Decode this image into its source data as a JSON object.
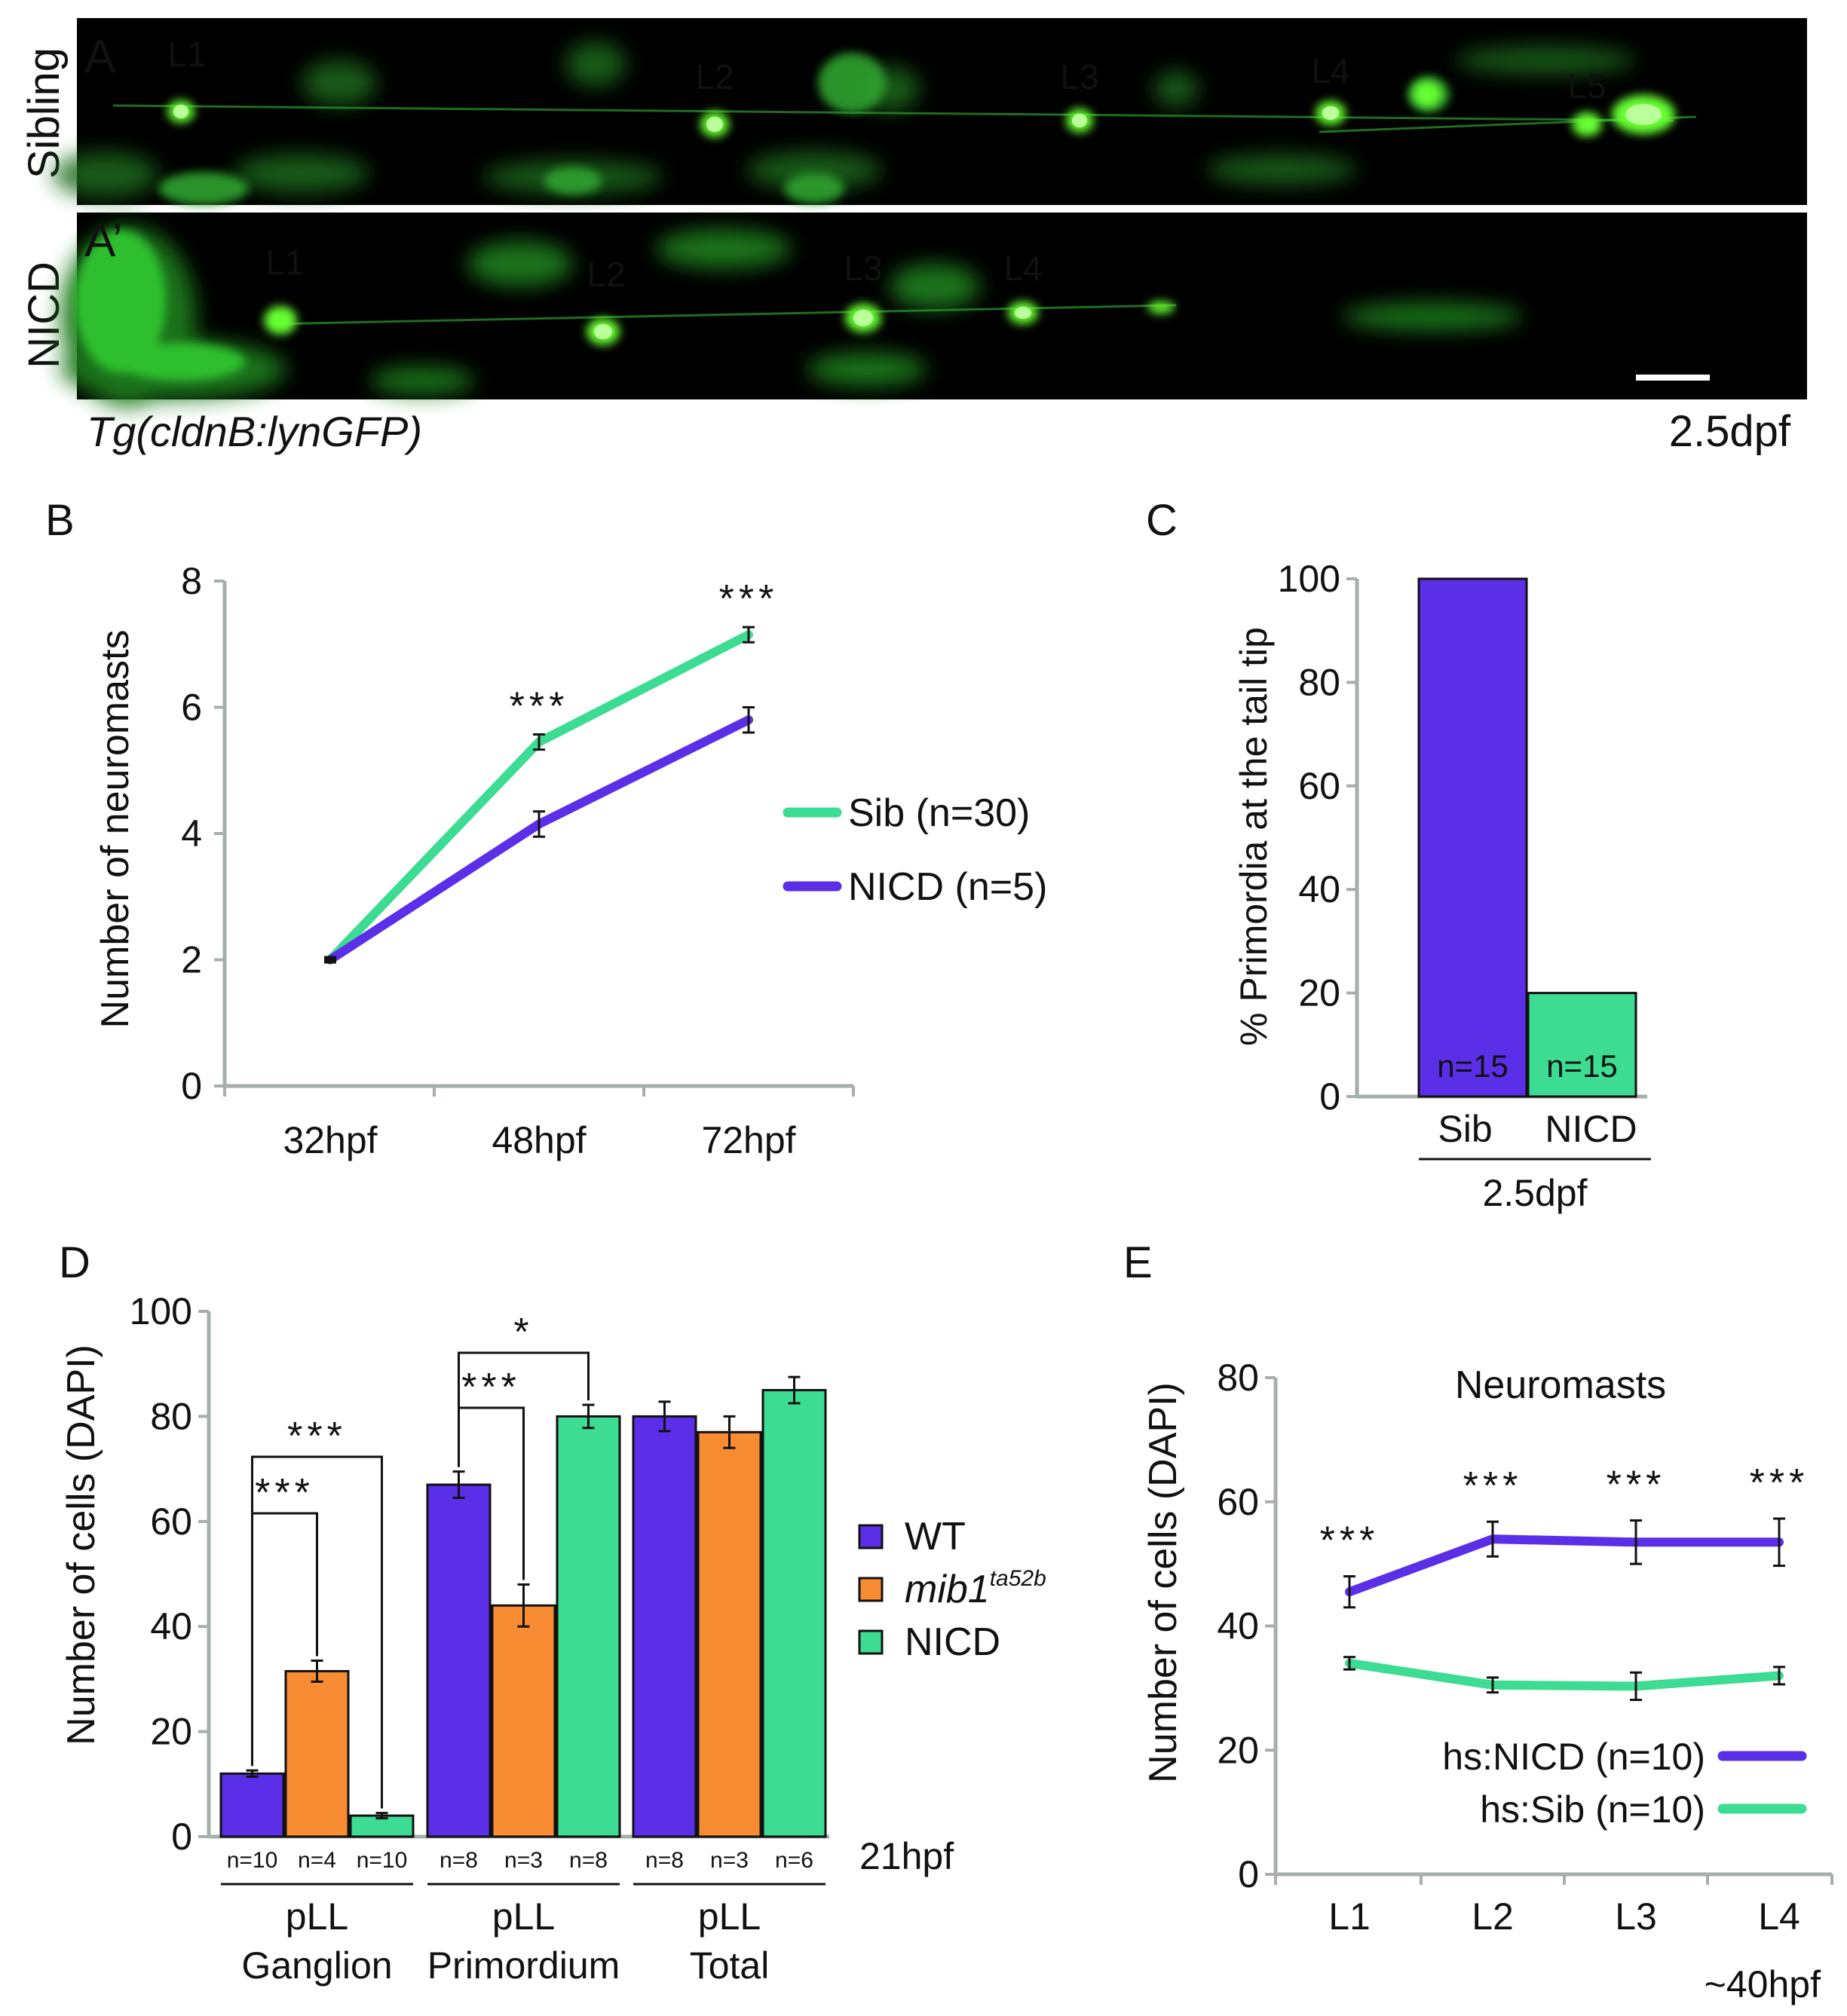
{
  "panelA": {
    "letter": "A",
    "letter2": "A’",
    "row_labels": [
      "Sibling",
      "NICD"
    ],
    "sibling_labels": [
      "L1",
      "L2",
      "L3",
      "L4",
      "L5"
    ],
    "nicd_labels": [
      "L1",
      "L2",
      "L3",
      "L4"
    ],
    "transgene": "Tg(cldnB:lynGFP)",
    "stage": "2.5dpf",
    "colors": {
      "background": "#000000",
      "gfp": "#33ff33",
      "transgene_text": "#3ecb1c"
    }
  },
  "chart_data": [
    {
      "id": "B",
      "type": "line",
      "letter": "B",
      "ylabel": "Number of neuromasts",
      "categories": [
        "32hpf",
        "48hpf",
        "72hpf"
      ],
      "ylim": [
        0,
        8
      ],
      "yticks": [
        "0",
        "2",
        "4",
        "6",
        "8"
      ],
      "series": [
        {
          "name": "Sib (n=30)",
          "color": "#3ddc93",
          "values": [
            2,
            5.45,
            7.15
          ],
          "errors": [
            0.05,
            0.12,
            0.12
          ]
        },
        {
          "name": "NICD (n=5)",
          "color": "#5b2ee8",
          "values": [
            2,
            4.15,
            5.8
          ],
          "errors": [
            0.05,
            0.2,
            0.2
          ]
        }
      ],
      "significance": [
        "***",
        "***"
      ],
      "legend": "right"
    },
    {
      "id": "C",
      "type": "bar",
      "letter": "C",
      "ylabel": "% Primordia at the tail tip",
      "categories": [
        "Sib",
        "NICD"
      ],
      "values": [
        100,
        20
      ],
      "n_labels": [
        "n=15",
        "n=15"
      ],
      "colors": [
        "#5b2ee8",
        "#3ddc93"
      ],
      "ylim": [
        0,
        100
      ],
      "yticks": [
        "0",
        "20",
        "40",
        "60",
        "80",
        "100"
      ],
      "xgroup_label": "2.5dpf"
    },
    {
      "id": "D",
      "type": "bar",
      "letter": "D",
      "ylabel": "Number of cells (DAPI)",
      "ylim": [
        0,
        100
      ],
      "yticks": [
        "0",
        "20",
        "40",
        "60",
        "80",
        "100"
      ],
      "groups": [
        {
          "line1": "pLL",
          "line2": "Ganglion"
        },
        {
          "line1": "pLL",
          "line2": "Primordium"
        },
        {
          "line1": "pLL",
          "line2": "Total"
        }
      ],
      "series": [
        {
          "name": "WT",
          "name_sup": "",
          "color": "#5b2ee8",
          "values": [
            12,
            67,
            80
          ],
          "errors": [
            0.6,
            2.5,
            2.8
          ],
          "n": [
            "n=10",
            "n=8",
            "n=8"
          ]
        },
        {
          "name": "mib1",
          "name_sup": "ta52b",
          "color": "#f78c32",
          "values": [
            31.5,
            44,
            77
          ],
          "errors": [
            2,
            4,
            3
          ],
          "n": [
            "n=4",
            "n=3",
            "n=3"
          ]
        },
        {
          "name": "NICD",
          "name_sup": "",
          "color": "#3ddc93",
          "values": [
            4,
            80,
            85
          ],
          "errors": [
            0.5,
            2.2,
            2.5
          ],
          "n": [
            "n=10",
            "n=8",
            "n=6"
          ]
        }
      ],
      "brackets": [
        {
          "label": "***",
          "group": 0,
          "from": 0,
          "to": 1
        },
        {
          "label": "***",
          "group": 0,
          "from": 0,
          "to": 2
        },
        {
          "label": "***",
          "group": 1,
          "from": 0,
          "to": 1
        },
        {
          "label": "*",
          "group": 1,
          "from": 0,
          "to": 2
        }
      ],
      "stage": "21hpf",
      "legend": "right"
    },
    {
      "id": "E",
      "type": "line",
      "letter": "E",
      "title": "Neuromasts",
      "ylabel": "Number of cells (DAPI)",
      "categories": [
        "L1",
        "L2",
        "L3",
        "L4"
      ],
      "ylim": [
        0,
        80
      ],
      "yticks": [
        "0",
        "20",
        "40",
        "60",
        "80"
      ],
      "series": [
        {
          "name": "hs:NICD (n=10)",
          "color": "#5b2ee8",
          "values": [
            45.5,
            54,
            53.5,
            53.5
          ],
          "errors": [
            2.5,
            2.8,
            3.5,
            3.8
          ]
        },
        {
          "name": "hs:Sib (n=10)",
          "color": "#3ddc93",
          "values": [
            34,
            30.5,
            30.3,
            32
          ],
          "errors": [
            1.0,
            1.2,
            2.2,
            1.4
          ]
        }
      ],
      "significance": [
        "***",
        "***",
        "***",
        "***"
      ],
      "stage": "~40hpf",
      "legend": "bottom-right"
    }
  ]
}
